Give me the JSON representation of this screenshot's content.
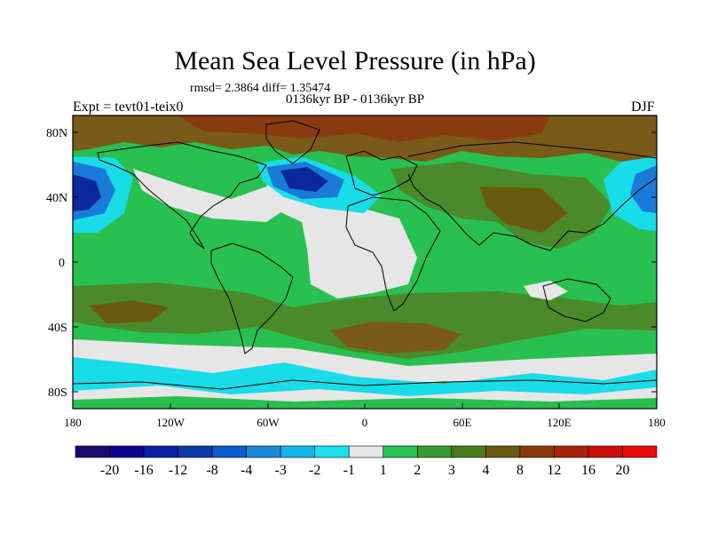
{
  "title": "Mean Sea Level Pressure (in hPa)",
  "stats_text": "rmsd= 2.3864 diff= 1.35474",
  "period_text": "0136kyr BP - 0136kyr BP",
  "experiment_text": "Expt = tevt01-teix0",
  "season": "DJF",
  "axes": {
    "lat_labels": [
      "80N",
      "40N",
      "0",
      "40S",
      "80S"
    ],
    "lon_labels": [
      "180",
      "120W",
      "60W",
      "0",
      "60E",
      "120E",
      "180"
    ]
  },
  "colorbar": {
    "labels": [
      "-20",
      "-16",
      "-12",
      "-8",
      "-4",
      "-3",
      "-2",
      "-1",
      "1",
      "2",
      "3",
      "4",
      "8",
      "12",
      "16",
      "20"
    ],
    "colors": [
      "#1a0a6b",
      "#08068f",
      "#0a1ea8",
      "#0a3aa8",
      "#0a5cc8",
      "#1a8ad8",
      "#14b4e8",
      "#18e0ec",
      "#e6e6e6",
      "#28c050",
      "#3a9a2e",
      "#4a7a1c",
      "#6a5a10",
      "#8a3a0a",
      "#a8220a",
      "#c81008",
      "#e80c0c"
    ]
  },
  "map_colors": {
    "land_outline": "#000000",
    "very_low": "#0a2a9a",
    "low": "#1a7ad8",
    "cyan": "#18dce8",
    "neutral": "#e6e6e6",
    "green": "#28c050",
    "olive": "#4a8a2a",
    "brown": "#7a5a18",
    "dark_brown": "#8a3a10"
  }
}
